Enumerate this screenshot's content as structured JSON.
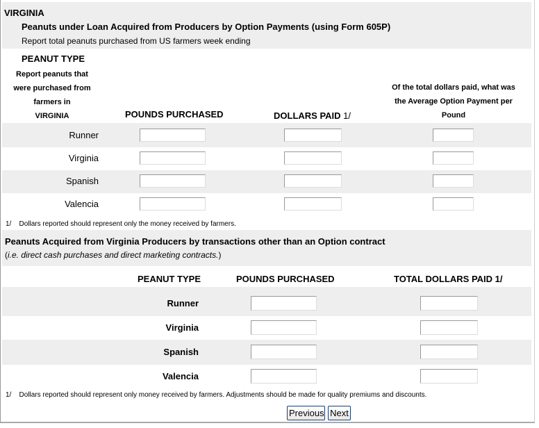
{
  "state": "VIRGINIA",
  "section1": {
    "title": "Peanuts under Loan Acquired from Producers by Option Payments (using Form 605P)",
    "subtitle": "Report total peanuts purchased from US farmers week ending",
    "col_type": "PEANUT TYPE",
    "col_type_note": [
      "Report peanuts that",
      "were purchased from",
      "farmers in",
      "VIRGINIA"
    ],
    "col_pounds": "POUNDS PURCHASED",
    "col_dollars": "DOLLARS PAID",
    "col_dollars_ref": "1/",
    "col_avg": [
      "Of the total dollars paid, what was",
      "the Average Option Payment per",
      "Pound"
    ],
    "rows": [
      {
        "label": "Runner",
        "pounds": "",
        "dollars": "",
        "avg": ""
      },
      {
        "label": "Virginia",
        "pounds": "",
        "dollars": "",
        "avg": ""
      },
      {
        "label": "Spanish",
        "pounds": "",
        "dollars": "",
        "avg": ""
      },
      {
        "label": "Valencia",
        "pounds": "",
        "dollars": "",
        "avg": ""
      }
    ],
    "footnote_mark": "1/",
    "footnote": "Dollars reported should represent only the money received by farmers."
  },
  "section2": {
    "title": "Peanuts Acquired from Virginia Producers by transactions other than an Option contract",
    "subtitle_open": "(",
    "subtitle_italic": "i.e. direct cash purchases and direct marketing contracts.",
    "subtitle_close": ")",
    "col_type": "PEANUT TYPE",
    "col_pounds": "POUNDS PURCHASED",
    "col_dollars": "TOTAL DOLLARS PAID 1/",
    "rows": [
      {
        "label": "Runner",
        "pounds": "",
        "dollars": ""
      },
      {
        "label": "Virginia",
        "pounds": "",
        "dollars": ""
      },
      {
        "label": "Spanish",
        "pounds": "",
        "dollars": ""
      },
      {
        "label": "Valencia",
        "pounds": "",
        "dollars": ""
      }
    ],
    "footnote_mark": "1/",
    "footnote": "Dollars reported should represent only money received by farmers.  Adjustments should be made for quality premiums and discounts."
  },
  "nav": {
    "previous": "Previous",
    "next": "Next"
  }
}
